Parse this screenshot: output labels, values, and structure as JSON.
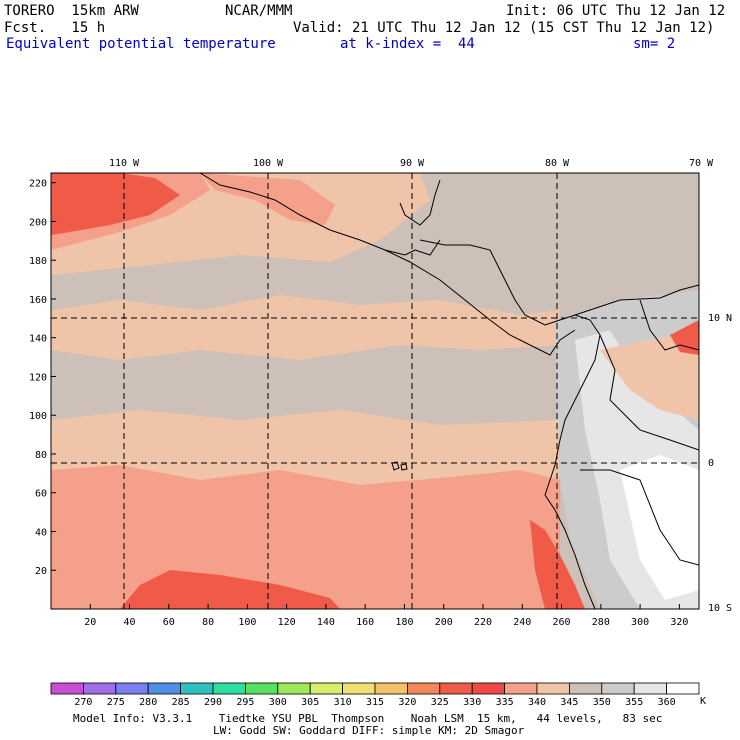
{
  "header": {
    "model": "TORERO  15km ARW",
    "center": "NCAR/MMM",
    "init": "Init: 06 UTC Thu 12 Jan 12",
    "fcst": "Fcst.   15 h",
    "valid": "Valid: 21 UTC Thu 12 Jan 12 (15 CST Thu 12 Jan 12)",
    "field": "Equivalent potential temperature",
    "level": "at k-index =  44",
    "smooth": "sm= 2"
  },
  "map": {
    "lon_labels": [
      "110 W",
      "100 W",
      "90 W",
      "80 W",
      "70 W"
    ],
    "lat_labels": [
      "10 N",
      "0",
      "10 S"
    ],
    "y_ticks": [
      "220",
      "200",
      "180",
      "160",
      "140",
      "120",
      "100",
      "80",
      "60",
      "40",
      "20"
    ],
    "x_ticks": [
      "20",
      "40",
      "60",
      "80",
      "100",
      "120",
      "140",
      "160",
      "180",
      "200",
      "220",
      "240",
      "260",
      "280",
      "300",
      "320"
    ]
  },
  "colorbar": {
    "labels": [
      "270",
      "275",
      "280",
      "285",
      "290",
      "295",
      "300",
      "305",
      "310",
      "315",
      "320",
      "325",
      "330",
      "335",
      "340",
      "345",
      "350",
      "355",
      "360"
    ],
    "unit": "K",
    "colors": [
      "#c64fd6",
      "#a06ee6",
      "#7a7ef0",
      "#4f8fe8",
      "#2fc0c0",
      "#2ee0a0",
      "#5ae060",
      "#9ee85a",
      "#d8ee6a",
      "#f0e070",
      "#f4c06a",
      "#f08a5a",
      "#f05a48",
      "#f04a46",
      "#f4a08a",
      "#f0c4a8",
      "#ccc0b8",
      "#cccccc",
      "#e6e6e6",
      "#ffffff"
    ]
  },
  "footer": {
    "line1": "Model Info: V3.3.1    Tiedtke YSU PBL  Thompson    Noah LSM  15 km,   44 levels,   83 sec",
    "line2": "LW: Godd SW: Goddard DIFF: simple KM: 2D Smagor"
  }
}
